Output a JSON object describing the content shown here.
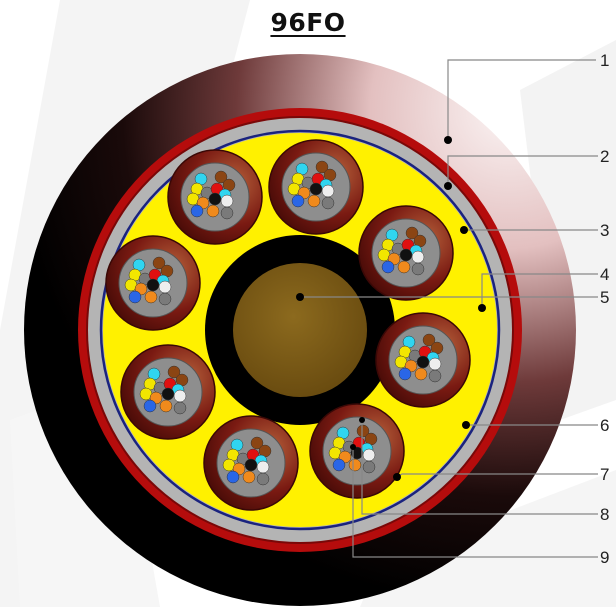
{
  "title": "96FO",
  "callouts": [
    "1",
    "2",
    "3",
    "4",
    "5",
    "6",
    "7",
    "8",
    "9"
  ],
  "colors": {
    "outer_sheath_dark": "#000000",
    "outer_sheath_light": "#e8c8c8",
    "red_layer": "#b50c0c",
    "gray_layer": "#b4b4b4",
    "blue_line": "#1a237e",
    "filler_yellow": "#fff100",
    "tube_brown": "#7a1a12",
    "tube_inner_gray": "#8e8e8e",
    "central_member": "#7a5a16",
    "central_black": "#000000"
  },
  "fiber_colors": [
    "#2a66e6",
    "#f08a1c",
    "#2ea24a",
    "#8b4513",
    "#7a7a7a",
    "#eeeeee",
    "#e01010",
    "#111111",
    "#f2e600",
    "#8a2be2",
    "#ff8fc8",
    "#30d5f0"
  ]
}
